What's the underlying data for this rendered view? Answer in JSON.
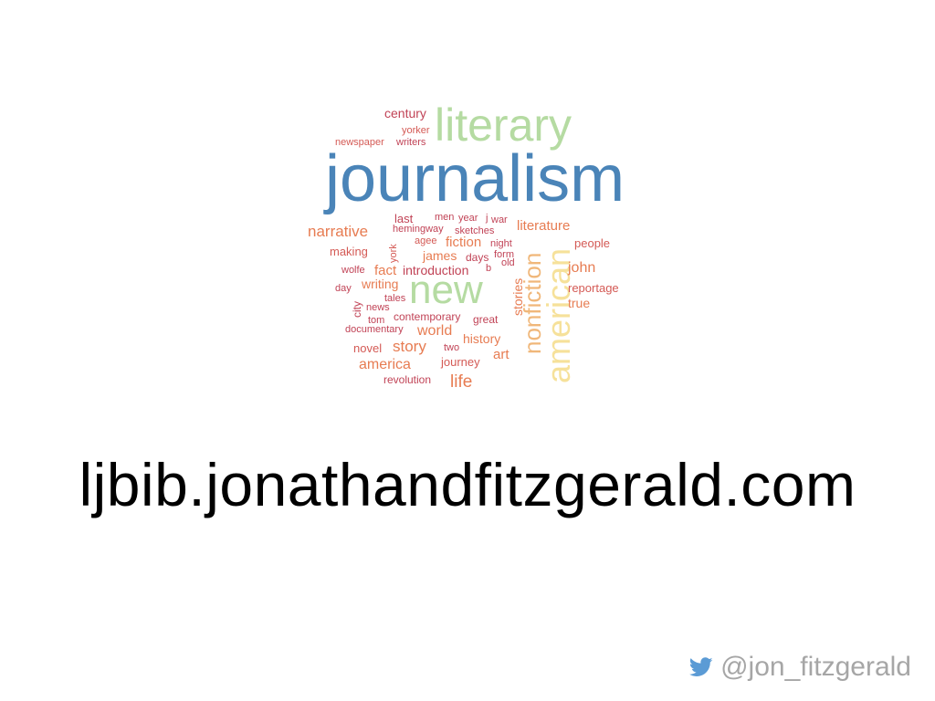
{
  "word_cloud": {
    "words": [
      {
        "text": "journalism",
        "color": "#4a84b8"
      },
      {
        "text": "literary",
        "color": "#b5dba2"
      },
      {
        "text": "new",
        "color": "#b5dba2"
      },
      {
        "text": "american",
        "color": "#f6e19a"
      },
      {
        "text": "nonfiction",
        "color": "#f0b77a"
      },
      {
        "text": "century",
        "color": "#c14356"
      },
      {
        "text": "yorker",
        "color": "#d45a55"
      },
      {
        "text": "newspaper",
        "color": "#d45a55"
      },
      {
        "text": "writers",
        "color": "#c14356"
      },
      {
        "text": "narrative",
        "color": "#e77c52"
      },
      {
        "text": "last",
        "color": "#c14356"
      },
      {
        "text": "men",
        "color": "#c14356"
      },
      {
        "text": "year",
        "color": "#c14356"
      },
      {
        "text": "j",
        "color": "#c14356"
      },
      {
        "text": "war",
        "color": "#c14356"
      },
      {
        "text": "literature",
        "color": "#e77c52"
      },
      {
        "text": "hemingway",
        "color": "#c14356"
      },
      {
        "text": "sketches",
        "color": "#c14356"
      },
      {
        "text": "agee",
        "color": "#d45a55"
      },
      {
        "text": "fiction",
        "color": "#e77c52"
      },
      {
        "text": "night",
        "color": "#c14356"
      },
      {
        "text": "people",
        "color": "#d45a55"
      },
      {
        "text": "making",
        "color": "#d45a55"
      },
      {
        "text": "york",
        "color": "#d45a55"
      },
      {
        "text": "james",
        "color": "#e77c52"
      },
      {
        "text": "days",
        "color": "#c14356"
      },
      {
        "text": "form",
        "color": "#c14356"
      },
      {
        "text": "old",
        "color": "#c14356"
      },
      {
        "text": "john",
        "color": "#e77c52"
      },
      {
        "text": "wolfe",
        "color": "#c14356"
      },
      {
        "text": "fact",
        "color": "#e77c52"
      },
      {
        "text": "introduction",
        "color": "#c14356"
      },
      {
        "text": "b",
        "color": "#c14356"
      },
      {
        "text": "writing",
        "color": "#e77c52"
      },
      {
        "text": "reportage",
        "color": "#d45a55"
      },
      {
        "text": "day",
        "color": "#c14356"
      },
      {
        "text": "tales",
        "color": "#c14356"
      },
      {
        "text": "stories",
        "color": "#e77c52"
      },
      {
        "text": "true",
        "color": "#e77c52"
      },
      {
        "text": "city",
        "color": "#c14356"
      },
      {
        "text": "news",
        "color": "#c14356"
      },
      {
        "text": "contemporary",
        "color": "#c14356"
      },
      {
        "text": "tom",
        "color": "#c14356"
      },
      {
        "text": "great",
        "color": "#c14356"
      },
      {
        "text": "documentary",
        "color": "#c14356"
      },
      {
        "text": "world",
        "color": "#e77c52"
      },
      {
        "text": "history",
        "color": "#e77c52"
      },
      {
        "text": "story",
        "color": "#e77c52"
      },
      {
        "text": "novel",
        "color": "#d45a55"
      },
      {
        "text": "two",
        "color": "#c14356"
      },
      {
        "text": "art",
        "color": "#e77c52"
      },
      {
        "text": "america",
        "color": "#e77c52"
      },
      {
        "text": "journey",
        "color": "#d45a55"
      },
      {
        "text": "revolution",
        "color": "#c14356"
      },
      {
        "text": "life",
        "color": "#e77c52"
      }
    ]
  },
  "url": "ljbib.jonathandfitzgerald.com",
  "twitter": {
    "icon": "twitter-bird-icon",
    "icon_color": "#5b9bd5",
    "handle": "@jon_fitzgerald"
  }
}
